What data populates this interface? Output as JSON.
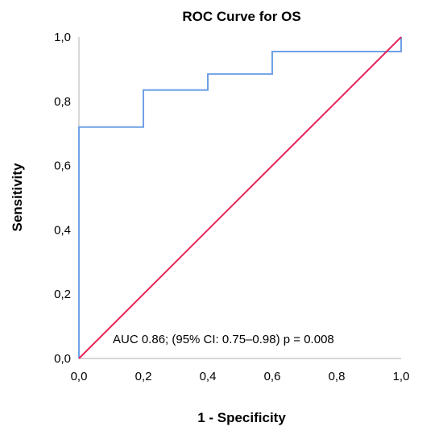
{
  "chart_data": {
    "type": "line",
    "title": "ROC Curve for OS",
    "xlabel": "1 - Specificity",
    "ylabel": "Sensitivity",
    "xlim": [
      0,
      1
    ],
    "ylim": [
      0,
      1
    ],
    "x_ticks": [
      "0,0",
      "0,2",
      "0,4",
      "0,6",
      "0,8",
      "1,0"
    ],
    "y_ticks": [
      "0,0",
      "0,2",
      "0,4",
      "0,6",
      "0,8",
      "1,0"
    ],
    "grid": false,
    "legend": "none",
    "series": [
      {
        "color": "#6fa0e6",
        "step": true,
        "points": [
          [
            0.0,
            0.0
          ],
          [
            0.0,
            0.72
          ],
          [
            0.2,
            0.72
          ],
          [
            0.2,
            0.835
          ],
          [
            0.4,
            0.835
          ],
          [
            0.4,
            0.885
          ],
          [
            0.6,
            0.885
          ],
          [
            0.6,
            0.955
          ],
          [
            1.0,
            0.955
          ],
          [
            1.0,
            1.0
          ]
        ]
      },
      {
        "color": "#e8245a",
        "points": [
          [
            0.0,
            0.0
          ],
          [
            1.0,
            1.0
          ]
        ]
      }
    ],
    "annotation": "AUC 0.86; (95% CI: 0.75–0.98) p = 0.008"
  }
}
